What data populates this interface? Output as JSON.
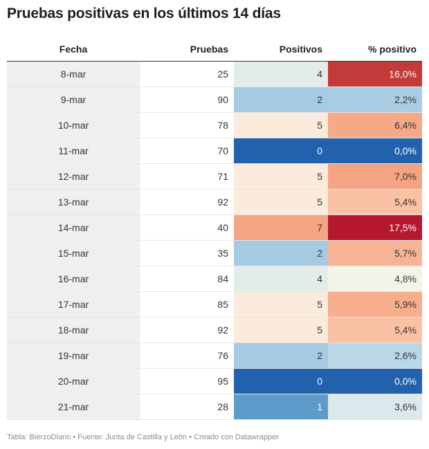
{
  "title": "Pruebas positivas en los últimos 14 días",
  "footer": "Tabla: BierzoDiario • Fuente: Junta de Castilla y León • Creado con Datawrapper",
  "chart_data": {
    "type": "table",
    "title": "Pruebas positivas en los últimos 14 días",
    "columns": [
      "Fecha",
      "Pruebas",
      "Positivos",
      "% positivo"
    ],
    "rows": [
      {
        "fecha": "8-mar",
        "pruebas": "25",
        "positivos": "4",
        "pct": "16,0%",
        "pos_color": "#e4ecea",
        "pct_color": "#c33a3a",
        "pos_dark": false,
        "pct_dark": true
      },
      {
        "fecha": "9-mar",
        "pruebas": "90",
        "positivos": "2",
        "pct": "2,2%",
        "pos_color": "#a6cae2",
        "pct_color": "#aacde3",
        "pos_dark": false,
        "pct_dark": false
      },
      {
        "fecha": "10-mar",
        "pruebas": "78",
        "positivos": "5",
        "pct": "6,4%",
        "pos_color": "#faebdc",
        "pct_color": "#f5a986",
        "pos_dark": false,
        "pct_dark": false
      },
      {
        "fecha": "11-mar",
        "pruebas": "70",
        "positivos": "0",
        "pct": "0,0%",
        "pos_color": "#2262ad",
        "pct_color": "#2262ad",
        "pos_dark": true,
        "pct_dark": true
      },
      {
        "fecha": "12-mar",
        "pruebas": "71",
        "positivos": "5",
        "pct": "7,0%",
        "pos_color": "#faebdc",
        "pct_color": "#f4a483",
        "pos_dark": false,
        "pct_dark": false
      },
      {
        "fecha": "13-mar",
        "pruebas": "92",
        "positivos": "5",
        "pct": "5,4%",
        "pos_color": "#faebdc",
        "pct_color": "#f9c2a5",
        "pos_dark": false,
        "pct_dark": false
      },
      {
        "fecha": "14-mar",
        "pruebas": "40",
        "positivos": "7",
        "pct": "17,5%",
        "pos_color": "#f4a584",
        "pct_color": "#b6182f",
        "pos_dark": false,
        "pct_dark": true
      },
      {
        "fecha": "15-mar",
        "pruebas": "35",
        "positivos": "2",
        "pct": "5,7%",
        "pos_color": "#a6cae2",
        "pct_color": "#f7b495",
        "pos_dark": false,
        "pct_dark": false
      },
      {
        "fecha": "16-mar",
        "pruebas": "84",
        "positivos": "4",
        "pct": "4,8%",
        "pos_color": "#e4ecea",
        "pct_color": "#f4f3e8",
        "pos_dark": false,
        "pct_dark": false
      },
      {
        "fecha": "17-mar",
        "pruebas": "85",
        "positivos": "5",
        "pct": "5,9%",
        "pos_color": "#faebdc",
        "pct_color": "#f6ae8c",
        "pos_dark": false,
        "pct_dark": false
      },
      {
        "fecha": "18-mar",
        "pruebas": "92",
        "positivos": "5",
        "pct": "5,4%",
        "pos_color": "#faebdc",
        "pct_color": "#f9c2a5",
        "pos_dark": false,
        "pct_dark": false
      },
      {
        "fecha": "19-mar",
        "pruebas": "76",
        "positivos": "2",
        "pct": "2,6%",
        "pos_color": "#a6cae2",
        "pct_color": "#bad7e8",
        "pos_dark": false,
        "pct_dark": false
      },
      {
        "fecha": "20-mar",
        "pruebas": "95",
        "positivos": "0",
        "pct": "0,0%",
        "pos_color": "#2262ad",
        "pct_color": "#2262ad",
        "pos_dark": true,
        "pct_dark": true
      },
      {
        "fecha": "21-mar",
        "pruebas": "28",
        "positivos": "1",
        "pct": "3,6%",
        "pos_color": "#5d9cca",
        "pct_color": "#dbe8ec",
        "pos_dark": true,
        "pct_dark": false
      }
    ]
  }
}
